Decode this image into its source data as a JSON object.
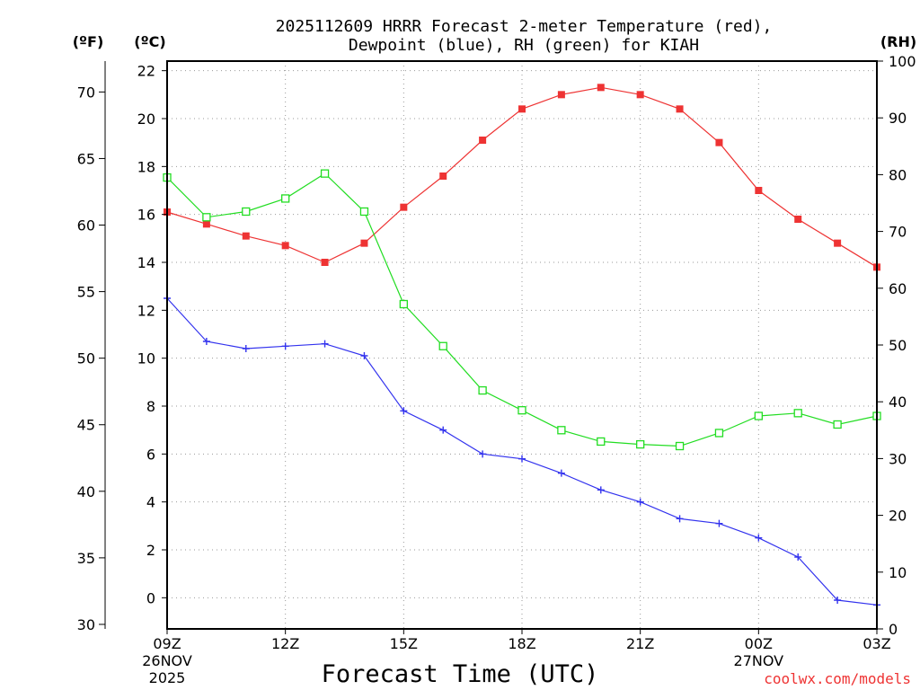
{
  "chart_data": {
    "type": "line",
    "title_line1": "2025112609 HRRR Forecast 2-meter Temperature (red),",
    "title_line2": "Dewpoint (blue), RH (green) for KIAH",
    "xlabel": "Forecast Time (UTC)",
    "watermark": "coolwx.com/models",
    "left_outer_axis_label": "(ºF)",
    "left_inner_axis_label": "(ºC)",
    "right_axis_label": "(RH)",
    "x_hours": [
      0,
      1,
      2,
      3,
      4,
      5,
      6,
      7,
      8,
      9,
      10,
      11,
      12,
      13,
      14,
      15,
      16,
      17,
      18
    ],
    "x_range": [
      0,
      18
    ],
    "x_ticks": [
      {
        "hour": 0,
        "label": "09Z",
        "sub1": "26NOV",
        "sub2": "2025"
      },
      {
        "hour": 3,
        "label": "12Z",
        "sub1": "",
        "sub2": ""
      },
      {
        "hour": 6,
        "label": "15Z",
        "sub1": "",
        "sub2": ""
      },
      {
        "hour": 9,
        "label": "18Z",
        "sub1": "",
        "sub2": ""
      },
      {
        "hour": 12,
        "label": "21Z",
        "sub1": "",
        "sub2": ""
      },
      {
        "hour": 15,
        "label": "00Z",
        "sub1": "27NOV",
        "sub2": ""
      },
      {
        "hour": 18,
        "label": "03Z",
        "sub1": "",
        "sub2": ""
      }
    ],
    "celsius_range": [
      -1.3,
      22.4
    ],
    "celsius_ticks": [
      0,
      2,
      4,
      6,
      8,
      10,
      12,
      14,
      16,
      18,
      20,
      22
    ],
    "fahrenheit_ticks": [
      30,
      35,
      40,
      45,
      50,
      55,
      60,
      65,
      70
    ],
    "rh_range": [
      0,
      100
    ],
    "rh_ticks": [
      0,
      10,
      20,
      30,
      40,
      50,
      60,
      70,
      80,
      90,
      100
    ],
    "series": [
      {
        "name": "Temperature",
        "units": "C",
        "color": "#ee3333",
        "marker": "filled-square",
        "values": [
          16.1,
          15.6,
          15.1,
          14.7,
          14.0,
          14.8,
          16.3,
          17.6,
          19.1,
          20.4,
          21.0,
          21.3,
          21.0,
          20.4,
          19.0,
          17.0,
          15.8,
          14.8,
          13.8
        ]
      },
      {
        "name": "Dewpoint",
        "units": "C",
        "color": "#3333ee",
        "marker": "plus",
        "values": [
          12.5,
          10.7,
          10.4,
          10.5,
          10.6,
          10.1,
          7.8,
          7.0,
          6.0,
          5.8,
          5.2,
          4.5,
          4.0,
          3.3,
          3.1,
          2.5,
          1.7,
          -0.1,
          -0.3
        ]
      },
      {
        "name": "RH",
        "units": "%",
        "color": "#22dd22",
        "marker": "open-square",
        "values": [
          79.5,
          72.5,
          73.5,
          75.8,
          80.2,
          73.5,
          57.2,
          49.8,
          42.0,
          38.5,
          35.0,
          33.0,
          32.5,
          32.2,
          34.5,
          37.5,
          38.0,
          36.0,
          37.5
        ]
      }
    ]
  }
}
